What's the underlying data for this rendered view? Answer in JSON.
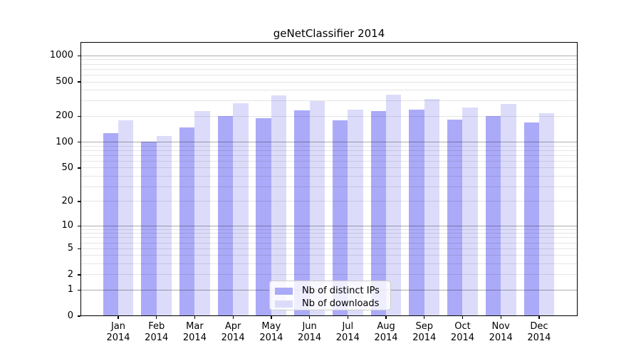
{
  "title": "geNetClassifier 2014",
  "legend": {
    "items": [
      {
        "label": "Nb of distinct IPs",
        "color": "#abaaf8"
      },
      {
        "label": "Nb of downloads",
        "color": "#dcdcfa"
      }
    ]
  },
  "chart_data": {
    "type": "bar",
    "title": "geNetClassifier 2014",
    "categories": [
      "Jan",
      "Feb",
      "Mar",
      "Apr",
      "May",
      "Jun",
      "Jul",
      "Aug",
      "Sep",
      "Oct",
      "Nov",
      "Dec"
    ],
    "category_year": "2014",
    "series": [
      {
        "name": "Nb of distinct IPs",
        "color": "#abaaf8",
        "values": [
          127,
          101,
          149,
          200,
          192,
          233,
          180,
          228,
          240,
          184,
          200,
          170
        ]
      },
      {
        "name": "Nb of downloads",
        "color": "#dcdcfa",
        "values": [
          178,
          118,
          228,
          286,
          348,
          301,
          241,
          357,
          319,
          255,
          277,
          216
        ]
      }
    ],
    "y_axis": {
      "scale": "log1p",
      "tick_values": [
        0,
        1,
        2,
        5,
        10,
        20,
        50,
        100,
        200,
        500,
        1000
      ],
      "range": [
        0,
        1000
      ]
    },
    "grid": {
      "on": true,
      "minor_color": "rgba(0,0,0,0.10)",
      "major_color": "rgba(0,0,0,0.32)",
      "major_at": [
        1,
        10,
        100,
        1000
      ],
      "drawn_over_bars": true
    },
    "legend_position": "lower center",
    "axis_color": "#000000",
    "background_color": "#ffffff"
  }
}
